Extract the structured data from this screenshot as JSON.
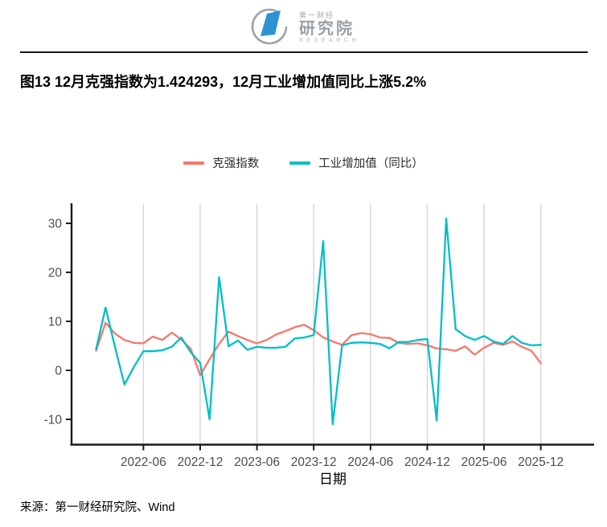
{
  "header": {
    "logo": {
      "line1": "第一财经",
      "line2": "研究院",
      "line3": "RESEARCH"
    }
  },
  "title": "图13 12月克强指数为1.424293，12月工业增加值同比上涨5.2%",
  "source": "来源：第一财经研究院、Wind",
  "chart_data": {
    "type": "line",
    "title": "",
    "xlabel": "日期",
    "ylabel": "",
    "grid": "vertical-only",
    "legend_position": "top-center",
    "ylim": [
      -13,
      33
    ],
    "yticks": [
      30,
      20,
      10,
      0,
      -10
    ],
    "xticks": [
      "2022-06",
      "2022-12",
      "2023-06",
      "2023-12",
      "2024-06",
      "2024-12",
      "2025-06",
      "2025-12"
    ],
    "x": [
      "2022-01",
      "2022-02",
      "2022-03",
      "2022-04",
      "2022-05",
      "2022-06",
      "2022-07",
      "2022-08",
      "2022-09",
      "2022-10",
      "2022-11",
      "2022-12",
      "2023-01",
      "2023-02",
      "2023-03",
      "2023-04",
      "2023-05",
      "2023-06",
      "2023-07",
      "2023-08",
      "2023-09",
      "2023-10",
      "2023-11",
      "2023-12",
      "2024-01",
      "2024-02",
      "2024-03",
      "2024-04",
      "2024-05",
      "2024-06",
      "2024-07",
      "2024-08",
      "2024-09",
      "2024-10",
      "2024-11",
      "2024-12",
      "2025-01",
      "2025-02",
      "2025-03",
      "2025-04",
      "2025-05",
      "2025-06",
      "2025-07",
      "2025-08",
      "2025-09",
      "2025-10",
      "2025-11",
      "2025-12"
    ],
    "series": [
      {
        "name": "克强指数",
        "color": "#F8766D",
        "values": [
          4.0,
          9.7,
          7.5,
          6.2,
          5.6,
          5.5,
          6.9,
          6.2,
          7.7,
          6.3,
          4.4,
          -1.0,
          2.3,
          5.4,
          7.9,
          7.0,
          6.2,
          5.5,
          6.2,
          7.3,
          8.0,
          8.8,
          9.3,
          8.2,
          6.7,
          5.9,
          5.2,
          7.2,
          7.6,
          7.4,
          6.7,
          6.6,
          5.6,
          5.4,
          5.5,
          5.1,
          4.5,
          4.3,
          4.0,
          4.9,
          3.2,
          4.6,
          5.6,
          5.2,
          5.9,
          4.8,
          4.0,
          1.424293
        ]
      },
      {
        "name": "工业增加值（同比）",
        "color": "#00BFC4",
        "values": [
          4.3,
          12.8,
          4.8,
          -2.9,
          0.7,
          3.9,
          3.9,
          4.1,
          4.8,
          6.7,
          3.7,
          1.5,
          -10.0,
          19.0,
          4.9,
          6.1,
          4.2,
          4.8,
          4.6,
          4.6,
          4.8,
          6.5,
          6.7,
          7.2,
          26.4,
          -11.0,
          5.1,
          5.6,
          5.7,
          5.6,
          5.4,
          4.5,
          5.8,
          5.8,
          6.2,
          6.4,
          -10.3,
          31.0,
          8.4,
          7.0,
          6.2,
          7.0,
          5.9,
          5.4,
          7.0,
          5.6,
          5.1,
          5.2
        ]
      }
    ]
  }
}
